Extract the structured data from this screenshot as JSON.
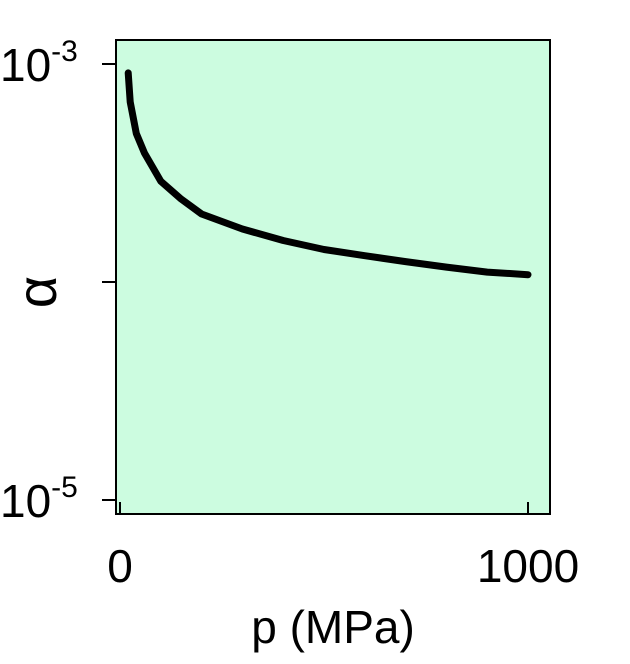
{
  "chart_data": {
    "type": "line",
    "title": "",
    "xlabel": "p (MPa)",
    "ylabel": "α",
    "xlim": [
      0,
      1000
    ],
    "ylim": [
      1e-05,
      0.001
    ],
    "yscale": "log",
    "grid": false,
    "legend": "none",
    "x_ticks": [
      {
        "value": 0,
        "label": "0"
      },
      {
        "value": 1000,
        "label": "1000"
      }
    ],
    "y_ticks": [
      {
        "value": 0.001,
        "base": "10",
        "exponent": "-3"
      },
      {
        "value": 0.0001,
        "base": "",
        "exponent": ""
      },
      {
        "value": 1e-05,
        "base": "10",
        "exponent": "-5"
      }
    ],
    "series": [
      {
        "x": [
          20,
          25,
          40,
          60,
          100,
          150,
          200,
          300,
          400,
          500,
          600,
          700,
          800,
          900,
          1000
        ],
        "y": [
          0.00091,
          0.00067,
          0.00048,
          0.00039,
          0.00029,
          0.00024,
          0.000205,
          0.000175,
          0.000155,
          0.000141,
          0.000132,
          0.000124,
          0.000117,
          0.000111,
          0.000108
        ]
      }
    ],
    "colors": {
      "plot_background": "#ccfce0",
      "line": "#000000",
      "axes": "#000000"
    }
  }
}
